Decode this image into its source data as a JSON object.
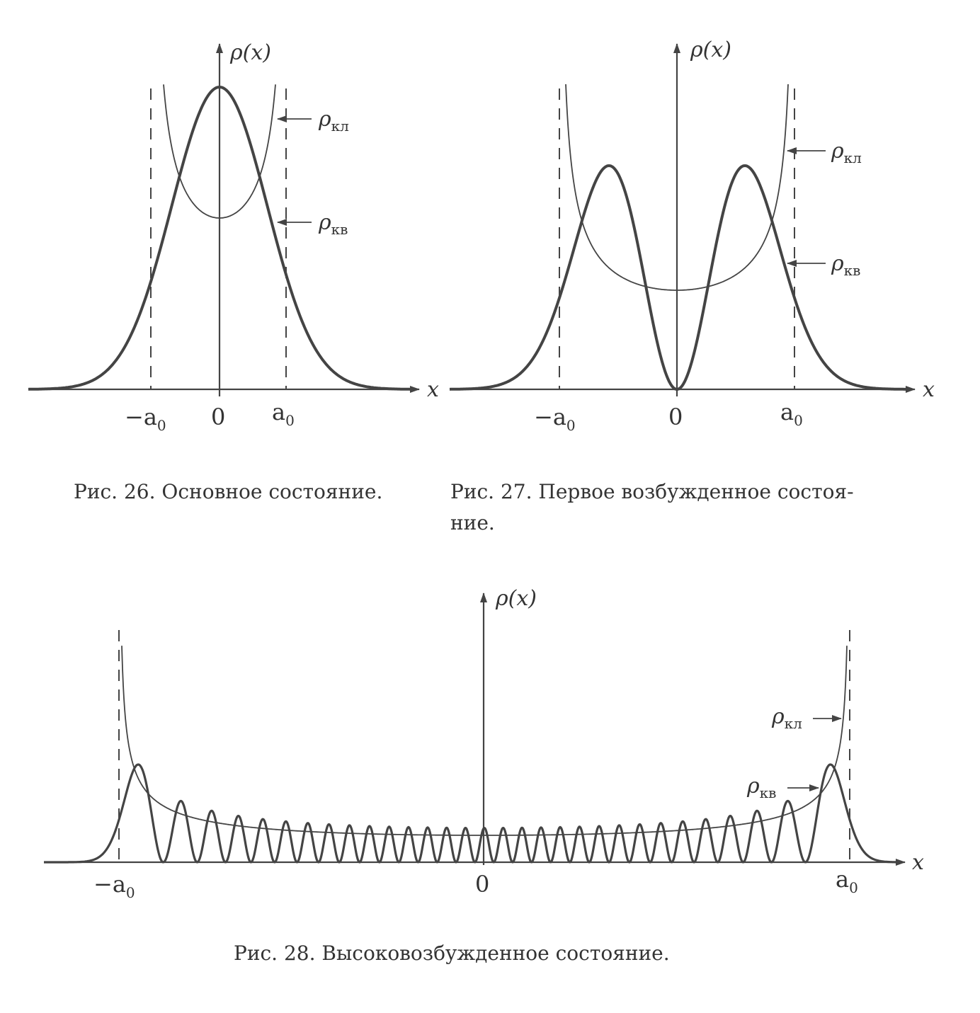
{
  "figures": [
    {
      "id": "fig26",
      "axis_x_label": "x",
      "axis_y_label": "ρ(x)",
      "ticks": [
        "−a",
        "0",
        "a"
      ],
      "tick_sub": "0",
      "rho_kl": {
        "symbol": "ρ",
        "sub": "кл"
      },
      "rho_kv": {
        "symbol": "ρ",
        "sub": "кв"
      },
      "caption": "Рис. 26. Основное состояние."
    },
    {
      "id": "fig27",
      "axis_x_label": "x",
      "axis_y_label": "ρ(x)",
      "ticks": [
        "−a",
        "0",
        "a"
      ],
      "tick_sub": "0",
      "rho_kl": {
        "symbol": "ρ",
        "sub": "кл"
      },
      "rho_kv": {
        "symbol": "ρ",
        "sub": "кв"
      },
      "caption_line1": "Рис. 27. Первое возбужденное состоя-",
      "caption_line2": "ние."
    },
    {
      "id": "fig28",
      "axis_x_label": "x",
      "axis_y_label": "ρ(x)",
      "ticks": [
        "−a",
        "0",
        "a"
      ],
      "tick_sub": "0",
      "rho_kl": {
        "symbol": "ρ",
        "sub": "кл"
      },
      "rho_kv": {
        "symbol": "ρ",
        "sub": "кв"
      },
      "caption": "Рис. 28. Высоковозбужденное состояние."
    }
  ]
}
